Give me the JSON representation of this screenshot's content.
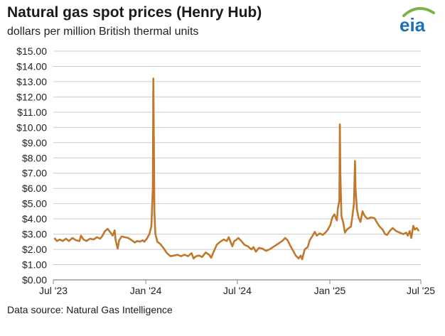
{
  "header": {
    "title": "Natural gas spot prices (Henry Hub)",
    "subtitle": "dollars per million British thermal units",
    "logo_text": "eia"
  },
  "footer": {
    "source": "Data source: Natural Gas Intelligence"
  },
  "colors": {
    "line": "#c1782d",
    "grid": "#cccccc",
    "axis": "#888888",
    "logo_blue": "#1d6fb8",
    "logo_green": "#7cb342"
  },
  "chart_data": {
    "type": "line",
    "title": "Natural gas spot prices (Henry Hub)",
    "ylabel": "dollars per million British thermal units",
    "xlabel": "",
    "ylim": [
      0,
      15
    ],
    "xlim": [
      "2023-07-01",
      "2025-07-01"
    ],
    "y_ticks": [
      "$0.00",
      "$1.00",
      "$2.00",
      "$3.00",
      "$4.00",
      "$5.00",
      "$6.00",
      "$7.00",
      "$8.00",
      "$9.00",
      "$10.00",
      "$11.00",
      "$12.00",
      "$13.00",
      "$14.00",
      "$15.00"
    ],
    "x_ticks": [
      {
        "label": "Jul '23",
        "date": "2023-07-01"
      },
      {
        "label": "Jan '24",
        "date": "2024-01-01"
      },
      {
        "label": "Jul '24",
        "date": "2024-07-01"
      },
      {
        "label": "Jan '25",
        "date": "2025-01-01"
      },
      {
        "label": "Jul '25",
        "date": "2025-07-01"
      }
    ],
    "grid": true,
    "legend": "none",
    "series": [
      {
        "points": [
          [
            "2023-07-03",
            2.75
          ],
          [
            "2023-07-08",
            2.55
          ],
          [
            "2023-07-14",
            2.65
          ],
          [
            "2023-07-20",
            2.55
          ],
          [
            "2023-07-26",
            2.7
          ],
          [
            "2023-08-01",
            2.55
          ],
          [
            "2023-08-08",
            2.75
          ],
          [
            "2023-08-15",
            2.6
          ],
          [
            "2023-08-22",
            2.55
          ],
          [
            "2023-08-25",
            2.9
          ],
          [
            "2023-08-30",
            2.65
          ],
          [
            "2023-09-05",
            2.55
          ],
          [
            "2023-09-12",
            2.7
          ],
          [
            "2023-09-19",
            2.65
          ],
          [
            "2023-09-26",
            2.8
          ],
          [
            "2023-10-02",
            2.7
          ],
          [
            "2023-10-06",
            2.85
          ],
          [
            "2023-10-12",
            3.2
          ],
          [
            "2023-10-17",
            3.35
          ],
          [
            "2023-10-23",
            3.1
          ],
          [
            "2023-10-27",
            2.9
          ],
          [
            "2023-10-31",
            3.25
          ],
          [
            "2023-11-02",
            2.6
          ],
          [
            "2023-11-06",
            2.05
          ],
          [
            "2023-11-09",
            2.6
          ],
          [
            "2023-11-14",
            2.85
          ],
          [
            "2023-11-20",
            2.8
          ],
          [
            "2023-11-27",
            2.75
          ],
          [
            "2023-12-04",
            2.6
          ],
          [
            "2023-12-10",
            2.45
          ],
          [
            "2023-12-15",
            2.55
          ],
          [
            "2023-12-20",
            2.5
          ],
          [
            "2023-12-26",
            2.6
          ],
          [
            "2023-12-29",
            2.5
          ],
          [
            "2024-01-03",
            2.7
          ],
          [
            "2024-01-08",
            3.0
          ],
          [
            "2024-01-12",
            3.5
          ],
          [
            "2024-01-15",
            6.0
          ],
          [
            "2024-01-16",
            13.2
          ],
          [
            "2024-01-17",
            9.0
          ],
          [
            "2024-01-18",
            4.5
          ],
          [
            "2024-01-20",
            3.0
          ],
          [
            "2024-01-24",
            2.5
          ],
          [
            "2024-01-30",
            2.35
          ],
          [
            "2024-02-06",
            2.05
          ],
          [
            "2024-02-12",
            1.75
          ],
          [
            "2024-02-19",
            1.55
          ],
          [
            "2024-02-26",
            1.6
          ],
          [
            "2024-03-04",
            1.65
          ],
          [
            "2024-03-11",
            1.55
          ],
          [
            "2024-03-18",
            1.65
          ],
          [
            "2024-03-25",
            1.55
          ],
          [
            "2024-04-01",
            1.75
          ],
          [
            "2024-04-05",
            1.4
          ],
          [
            "2024-04-10",
            1.55
          ],
          [
            "2024-04-16",
            1.6
          ],
          [
            "2024-04-22",
            1.5
          ],
          [
            "2024-04-29",
            1.8
          ],
          [
            "2024-05-06",
            1.65
          ],
          [
            "2024-05-10",
            1.45
          ],
          [
            "2024-05-15",
            1.85
          ],
          [
            "2024-05-21",
            2.3
          ],
          [
            "2024-05-28",
            2.5
          ],
          [
            "2024-06-04",
            2.65
          ],
          [
            "2024-06-10",
            2.55
          ],
          [
            "2024-06-14",
            2.8
          ],
          [
            "2024-06-18",
            2.45
          ],
          [
            "2024-06-21",
            2.2
          ],
          [
            "2024-06-25",
            2.55
          ],
          [
            "2024-06-28",
            2.6
          ],
          [
            "2024-07-03",
            2.75
          ],
          [
            "2024-07-09",
            2.55
          ],
          [
            "2024-07-15",
            2.3
          ],
          [
            "2024-07-22",
            2.2
          ],
          [
            "2024-07-29",
            2.0
          ],
          [
            "2024-08-02",
            2.15
          ],
          [
            "2024-08-07",
            1.85
          ],
          [
            "2024-08-13",
            2.1
          ],
          [
            "2024-08-20",
            2.05
          ],
          [
            "2024-08-27",
            1.9
          ],
          [
            "2024-09-03",
            2.0
          ],
          [
            "2024-09-10",
            2.15
          ],
          [
            "2024-09-17",
            2.3
          ],
          [
            "2024-09-24",
            2.45
          ],
          [
            "2024-09-30",
            2.6
          ],
          [
            "2024-10-04",
            2.75
          ],
          [
            "2024-10-09",
            2.6
          ],
          [
            "2024-10-15",
            2.2
          ],
          [
            "2024-10-21",
            1.85
          ],
          [
            "2024-10-25",
            1.6
          ],
          [
            "2024-10-31",
            1.4
          ],
          [
            "2024-11-04",
            1.6
          ],
          [
            "2024-11-07",
            1.35
          ],
          [
            "2024-11-12",
            2.0
          ],
          [
            "2024-11-18",
            2.15
          ],
          [
            "2024-11-22",
            2.6
          ],
          [
            "2024-11-27",
            2.85
          ],
          [
            "2024-12-02",
            3.15
          ],
          [
            "2024-12-06",
            2.9
          ],
          [
            "2024-12-12",
            3.05
          ],
          [
            "2024-12-18",
            2.95
          ],
          [
            "2024-12-23",
            3.1
          ],
          [
            "2024-12-27",
            3.25
          ],
          [
            "2025-01-02",
            3.6
          ],
          [
            "2025-01-06",
            4.1
          ],
          [
            "2025-01-10",
            4.3
          ],
          [
            "2025-01-15",
            3.9
          ],
          [
            "2025-01-17",
            4.7
          ],
          [
            "2025-01-20",
            5.2
          ],
          [
            "2025-01-21",
            10.2
          ],
          [
            "2025-01-22",
            7.0
          ],
          [
            "2025-01-24",
            4.2
          ],
          [
            "2025-01-28",
            3.7
          ],
          [
            "2025-01-31",
            3.1
          ],
          [
            "2025-02-04",
            3.3
          ],
          [
            "2025-02-08",
            3.4
          ],
          [
            "2025-02-12",
            3.5
          ],
          [
            "2025-02-15",
            4.2
          ],
          [
            "2025-02-18",
            5.0
          ],
          [
            "2025-02-20",
            7.8
          ],
          [
            "2025-02-21",
            6.0
          ],
          [
            "2025-02-24",
            4.6
          ],
          [
            "2025-02-27",
            4.1
          ],
          [
            "2025-03-03",
            3.8
          ],
          [
            "2025-03-07",
            4.5
          ],
          [
            "2025-03-11",
            4.2
          ],
          [
            "2025-03-17",
            4.0
          ],
          [
            "2025-03-24",
            4.1
          ],
          [
            "2025-03-31",
            4.05
          ],
          [
            "2025-04-04",
            3.8
          ],
          [
            "2025-04-10",
            3.5
          ],
          [
            "2025-04-16",
            3.3
          ],
          [
            "2025-04-21",
            3.0
          ],
          [
            "2025-04-25",
            2.95
          ],
          [
            "2025-04-30",
            3.2
          ],
          [
            "2025-05-06",
            3.4
          ],
          [
            "2025-05-13",
            3.2
          ],
          [
            "2025-05-20",
            3.1
          ],
          [
            "2025-05-27",
            3.0
          ],
          [
            "2025-06-02",
            3.1
          ],
          [
            "2025-06-05",
            2.9
          ],
          [
            "2025-06-09",
            3.2
          ],
          [
            "2025-06-12",
            2.75
          ],
          [
            "2025-06-16",
            3.55
          ],
          [
            "2025-06-19",
            3.3
          ],
          [
            "2025-06-23",
            3.4
          ],
          [
            "2025-06-27",
            3.2
          ]
        ]
      }
    ]
  }
}
